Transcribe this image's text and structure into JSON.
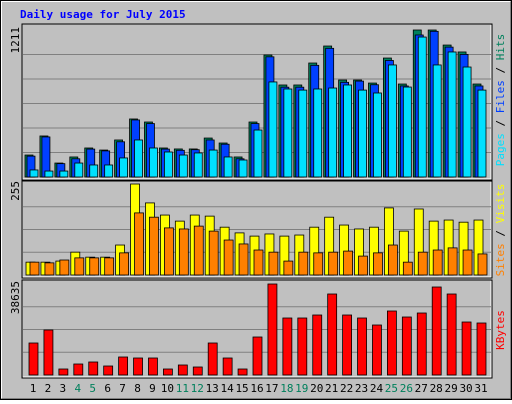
{
  "chart_data": [
    {
      "type": "bar",
      "title": "Daily usage for July 2015",
      "ylim": [
        0,
        1211
      ],
      "yticks": [
        1211
      ],
      "series": [
        {
          "name": "Hits",
          "color": "#00805c",
          "values": [
            181,
            338,
            115,
            165,
            239,
            222,
            305,
            478,
            453,
            239,
            231,
            231,
            321,
            280,
            165,
            453,
            1005,
            758,
            758,
            939,
            1079,
            799,
            799,
            774,
            980,
            766,
            1211,
            1211,
            1087,
            1030,
            766
          ]
        },
        {
          "name": "Files",
          "color": "#0040ff",
          "values": [
            172,
            330,
            110,
            150,
            230,
            215,
            290,
            470,
            440,
            230,
            220,
            225,
            305,
            270,
            150,
            440,
            990,
            740,
            740,
            920,
            1060,
            780,
            790,
            760,
            960,
            750,
            1170,
            1200,
            1070,
            1010,
            750
          ]
        },
        {
          "name": "Pages",
          "color": "#00e0ff",
          "values": [
            58,
            49,
            49,
            115,
            99,
            99,
            157,
            305,
            239,
            206,
            181,
            198,
            222,
            165,
            140,
            387,
            783,
            725,
            716,
            725,
            733,
            758,
            716,
            692,
            923,
            741,
            1153,
            923,
            1030,
            906,
            716
          ]
        }
      ]
    },
    {
      "type": "bar",
      "ylim": [
        0,
        255
      ],
      "yticks": [
        255
      ],
      "series": [
        {
          "name": "Visits",
          "color": "#ffff00",
          "values": [
            36,
            36,
            39,
            64,
            50,
            50,
            84,
            255,
            202,
            168,
            151,
            168,
            165,
            134,
            118,
            109,
            115,
            109,
            112,
            134,
            162,
            140,
            129,
            134,
            188,
            123,
            185,
            151,
            154,
            148,
            154
          ]
        },
        {
          "name": "Sites",
          "color": "#ff8000",
          "values": [
            36,
            34,
            42,
            48,
            48,
            48,
            62,
            174,
            162,
            132,
            129,
            137,
            123,
            98,
            87,
            70,
            64,
            39,
            64,
            62,
            64,
            67,
            53,
            62,
            84,
            36,
            64,
            70,
            76,
            70,
            59
          ]
        }
      ]
    },
    {
      "type": "bar",
      "ylim": [
        0,
        38635
      ],
      "yticks": [
        38635
      ],
      "categories": [
        "1",
        "2",
        "3",
        "4",
        "5",
        "6",
        "7",
        "8",
        "9",
        "10",
        "11",
        "12",
        "13",
        "14",
        "15",
        "16",
        "17",
        "18",
        "19",
        "20",
        "21",
        "22",
        "23",
        "24",
        "25",
        "26",
        "27",
        "28",
        "29",
        "30",
        "31"
      ],
      "category_colors": [
        "#000000",
        "#000000",
        "#000000",
        "#00805c",
        "#00805c",
        "#000000",
        "#000000",
        "#000000",
        "#000000",
        "#000000",
        "#00805c",
        "#00805c",
        "#000000",
        "#000000",
        "#000000",
        "#000000",
        "#000000",
        "#00805c",
        "#00805c",
        "#000000",
        "#000000",
        "#000000",
        "#000000",
        "#000000",
        "#00805c",
        "#00805c",
        "#000000",
        "#000000",
        "#000000",
        "#000000",
        "#000000"
      ],
      "series": [
        {
          "name": "KBytes",
          "color": "#ff0000",
          "values": [
            13586,
            19105,
            2547,
            4670,
            5519,
            3821,
            7642,
            7217,
            7217,
            2547,
            4246,
            3396,
            13586,
            7217,
            2547,
            16133,
            38635,
            24200,
            24200,
            25473,
            34389,
            25473,
            24200,
            21228,
            27172,
            24624,
            26322,
            37361,
            34389,
            22501,
            22077
          ]
        }
      ]
    }
  ]
}
